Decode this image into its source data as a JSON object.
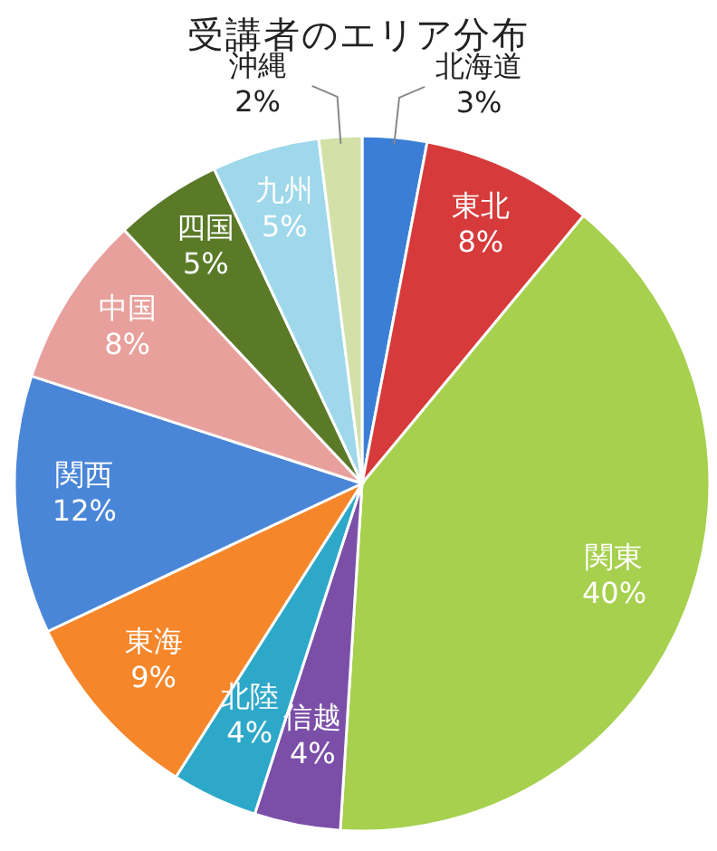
{
  "chart_data": {
    "type": "pie",
    "title": "受講者のエリア分布",
    "categories": [
      "北海道",
      "東北",
      "関東",
      "信越",
      "北陸",
      "東海",
      "関西",
      "中国",
      "四国",
      "九州",
      "沖縄"
    ],
    "values": [
      3,
      8,
      40,
      4,
      4,
      9,
      12,
      8,
      5,
      5,
      2
    ],
    "colors": [
      "#3a7fd5",
      "#d63a3a",
      "#a6d04e",
      "#7b4fa8",
      "#2ea8c8",
      "#f5862a",
      "#4a86d8",
      "#e8a09c",
      "#5a7a28",
      "#9ed8ea",
      "#d3e0a8"
    ],
    "value_labels": [
      "3%",
      "8%",
      "40%",
      "4%",
      "4%",
      "9%",
      "12%",
      "8%",
      "5%",
      "5%",
      "2%"
    ]
  }
}
